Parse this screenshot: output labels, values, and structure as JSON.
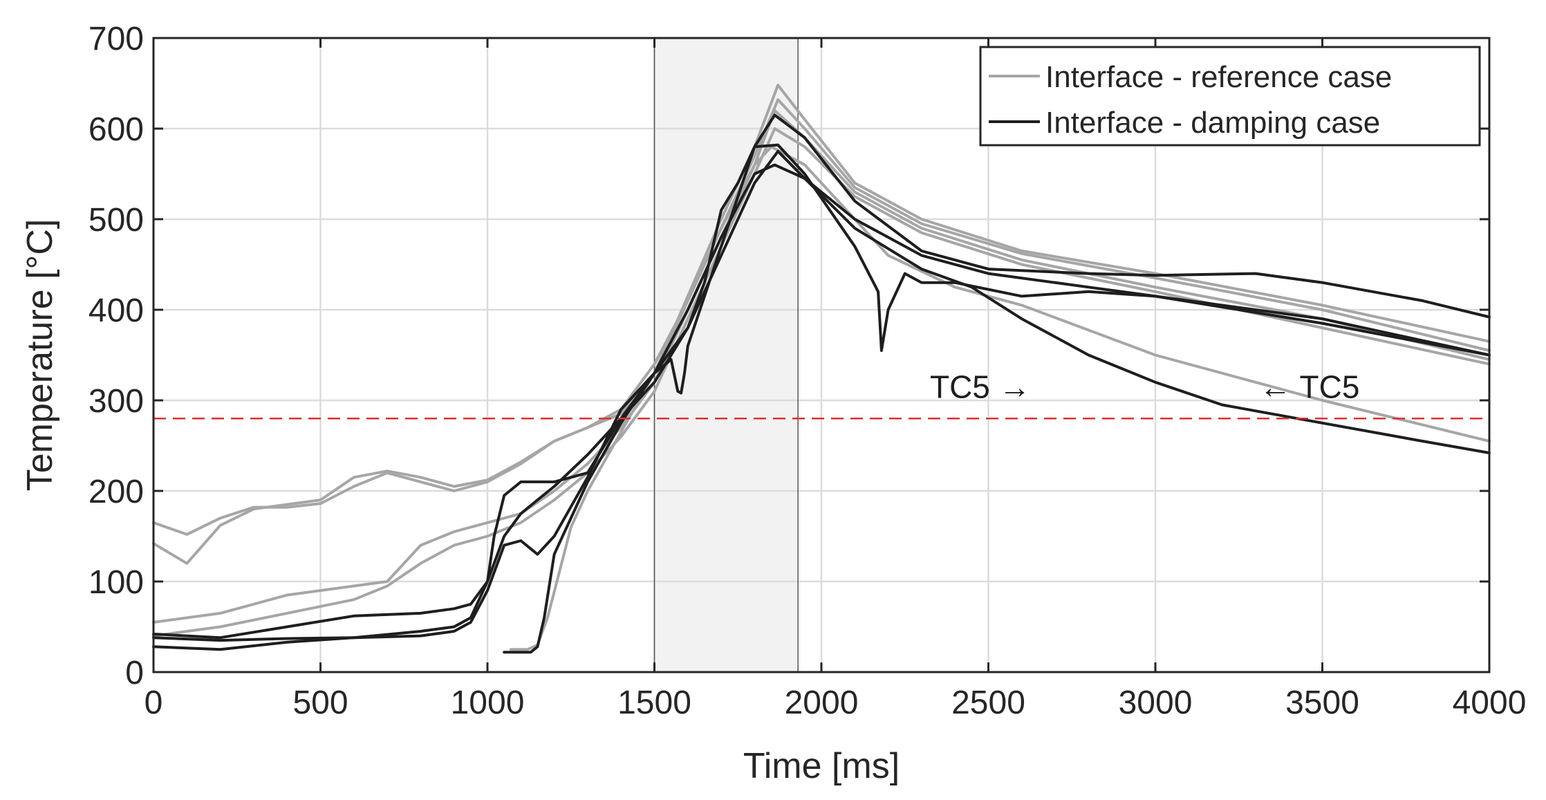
{
  "chart_data": {
    "type": "line",
    "title": "",
    "xlabel": "Time [ms]",
    "ylabel": "Temperature [°C]",
    "xlim": [
      0,
      4000
    ],
    "ylim": [
      0,
      700
    ],
    "xticks": [
      0,
      500,
      1000,
      1500,
      2000,
      2500,
      3000,
      3500,
      4000
    ],
    "yticks": [
      0,
      100,
      200,
      300,
      400,
      500,
      600,
      700
    ],
    "grid": true,
    "legend_position": "top-right",
    "shaded_region": {
      "x_start": 1500,
      "x_end": 1930,
      "color": "#f2f2f2"
    },
    "threshold": {
      "y": 280,
      "color": "#e03030",
      "style": "dashed"
    },
    "annotations": [
      {
        "text": "TC5 →",
        "x": 2590,
        "y": 315
      },
      {
        "text": "← TC5",
        "x": 3320,
        "y": 315
      }
    ],
    "legend": [
      {
        "label": "Interface - reference case",
        "color": "#a6a6a6"
      },
      {
        "label": "Interface - damping case",
        "color": "#1e1e1e"
      }
    ],
    "series": [
      {
        "name": "Interface - reference case",
        "group": "reference",
        "color": "#a6a6a6",
        "x": [
          0,
          100,
          200,
          300,
          400,
          500,
          600,
          700,
          800,
          900,
          1000,
          1100,
          1200,
          1300,
          1400,
          1500,
          1600,
          1700,
          1800,
          1870,
          1950,
          2100,
          2300,
          2600,
          3000,
          3500,
          4000
        ],
        "y": [
          165,
          152,
          170,
          182,
          182,
          186,
          205,
          220,
          210,
          200,
          210,
          230,
          255,
          270,
          285,
          330,
          415,
          500,
          580,
          648,
          610,
          540,
          500,
          465,
          440,
          405,
          365
        ]
      },
      {
        "name": "Interface - reference case",
        "group": "reference",
        "color": "#a6a6a6",
        "x": [
          0,
          100,
          200,
          300,
          400,
          500,
          600,
          700,
          800,
          900,
          1000,
          1100,
          1200,
          1300,
          1400,
          1500,
          1600,
          1700,
          1800,
          1870,
          1950,
          2100,
          2300,
          2600,
          3000,
          3500,
          4000
        ],
        "y": [
          142,
          120,
          162,
          180,
          185,
          190,
          215,
          222,
          215,
          205,
          212,
          232,
          255,
          270,
          290,
          340,
          410,
          490,
          570,
          632,
          600,
          535,
          495,
          462,
          435,
          400,
          355
        ]
      },
      {
        "name": "Interface - reference case",
        "group": "reference",
        "color": "#a6a6a6",
        "x": [
          0,
          200,
          400,
          600,
          700,
          800,
          900,
          1000,
          1100,
          1200,
          1300,
          1400,
          1500,
          1600,
          1700,
          1800,
          1860,
          1950,
          2100,
          2300,
          2600,
          3000,
          3500,
          4000
        ],
        "y": [
          55,
          65,
          85,
          95,
          100,
          140,
          155,
          165,
          175,
          200,
          230,
          270,
          320,
          400,
          480,
          560,
          620,
          590,
          530,
          490,
          455,
          425,
          390,
          345
        ]
      },
      {
        "name": "Interface - reference case",
        "group": "reference",
        "color": "#a6a6a6",
        "x": [
          0,
          200,
          400,
          600,
          700,
          800,
          900,
          1000,
          1100,
          1200,
          1300,
          1400,
          1500,
          1600,
          1700,
          1800,
          1860,
          1950,
          2100,
          2300,
          2600,
          3000,
          3500,
          4000
        ],
        "y": [
          40,
          50,
          65,
          80,
          95,
          120,
          140,
          150,
          165,
          190,
          220,
          260,
          310,
          390,
          470,
          550,
          600,
          580,
          525,
          485,
          450,
          420,
          380,
          340
        ]
      },
      {
        "name": "Interface - reference case",
        "group": "reference",
        "color": "#a6a6a6",
        "x": [
          1070,
          1120,
          1150,
          1180,
          1250,
          1300,
          1400,
          1500,
          1600,
          1700,
          1800,
          1850,
          1950,
          2100,
          2200,
          2400,
          2600,
          3000,
          3500,
          4000
        ],
        "y": [
          25,
          25,
          30,
          60,
          160,
          200,
          265,
          330,
          410,
          490,
          560,
          580,
          560,
          500,
          460,
          425,
          405,
          350,
          300,
          255
        ]
      },
      {
        "name": "Interface - damping case",
        "group": "damping",
        "color": "#1e1e1e",
        "x": [
          0,
          200,
          400,
          600,
          800,
          900,
          950,
          1000,
          1020,
          1050,
          1100,
          1200,
          1300,
          1400,
          1500,
          1550,
          1570,
          1580,
          1590,
          1600,
          1700,
          1800,
          1860,
          1950,
          2100,
          2300,
          2500,
          2800,
          3000,
          3300,
          3500,
          3800,
          4000
        ],
        "y": [
          42,
          38,
          50,
          62,
          65,
          70,
          75,
          100,
          150,
          195,
          210,
          210,
          220,
          280,
          330,
          345,
          310,
          308,
          330,
          360,
          470,
          580,
          615,
          590,
          520,
          465,
          445,
          440,
          438,
          440,
          430,
          410,
          392
        ]
      },
      {
        "name": "Interface - damping case",
        "group": "damping",
        "color": "#1e1e1e",
        "x": [
          0,
          200,
          400,
          600,
          800,
          900,
          950,
          1000,
          1050,
          1100,
          1150,
          1200,
          1300,
          1400,
          1500,
          1600,
          1650,
          1700,
          1750,
          1800,
          1870,
          1950,
          2100,
          2170,
          2180,
          2200,
          2250,
          2300,
          2400,
          2600,
          2800,
          3000,
          3500,
          4000
        ],
        "y": [
          38,
          35,
          37,
          38,
          40,
          45,
          55,
          90,
          140,
          145,
          130,
          150,
          215,
          290,
          330,
          380,
          430,
          510,
          540,
          580,
          582,
          550,
          470,
          420,
          355,
          400,
          440,
          430,
          430,
          415,
          420,
          415,
          390,
          350
        ]
      },
      {
        "name": "Interface - damping case",
        "group": "damping",
        "color": "#1e1e1e",
        "x": [
          0,
          200,
          400,
          600,
          800,
          900,
          950,
          1000,
          1050,
          1100,
          1150,
          1200,
          1300,
          1400,
          1500,
          1600,
          1700,
          1800,
          1870,
          1950,
          2100,
          2300,
          2500,
          2800,
          3000,
          3500,
          4000
        ],
        "y": [
          28,
          25,
          33,
          38,
          45,
          50,
          60,
          100,
          150,
          175,
          190,
          205,
          240,
          280,
          320,
          380,
          460,
          540,
          575,
          545,
          500,
          460,
          440,
          425,
          415,
          385,
          350
        ]
      },
      {
        "name": "Interface - damping case",
        "group": "damping",
        "color": "#1e1e1e",
        "x": [
          1050,
          1130,
          1150,
          1170,
          1200,
          1300,
          1400,
          1500,
          1600,
          1700,
          1800,
          1860,
          1950,
          2100,
          2300,
          2450,
          2600,
          2800,
          3000,
          3200,
          3500,
          3800,
          4000
        ],
        "y": [
          22,
          22,
          28,
          60,
          130,
          210,
          275,
          330,
          400,
          480,
          550,
          560,
          545,
          490,
          445,
          425,
          390,
          350,
          320,
          295,
          275,
          255,
          242
        ]
      }
    ]
  }
}
